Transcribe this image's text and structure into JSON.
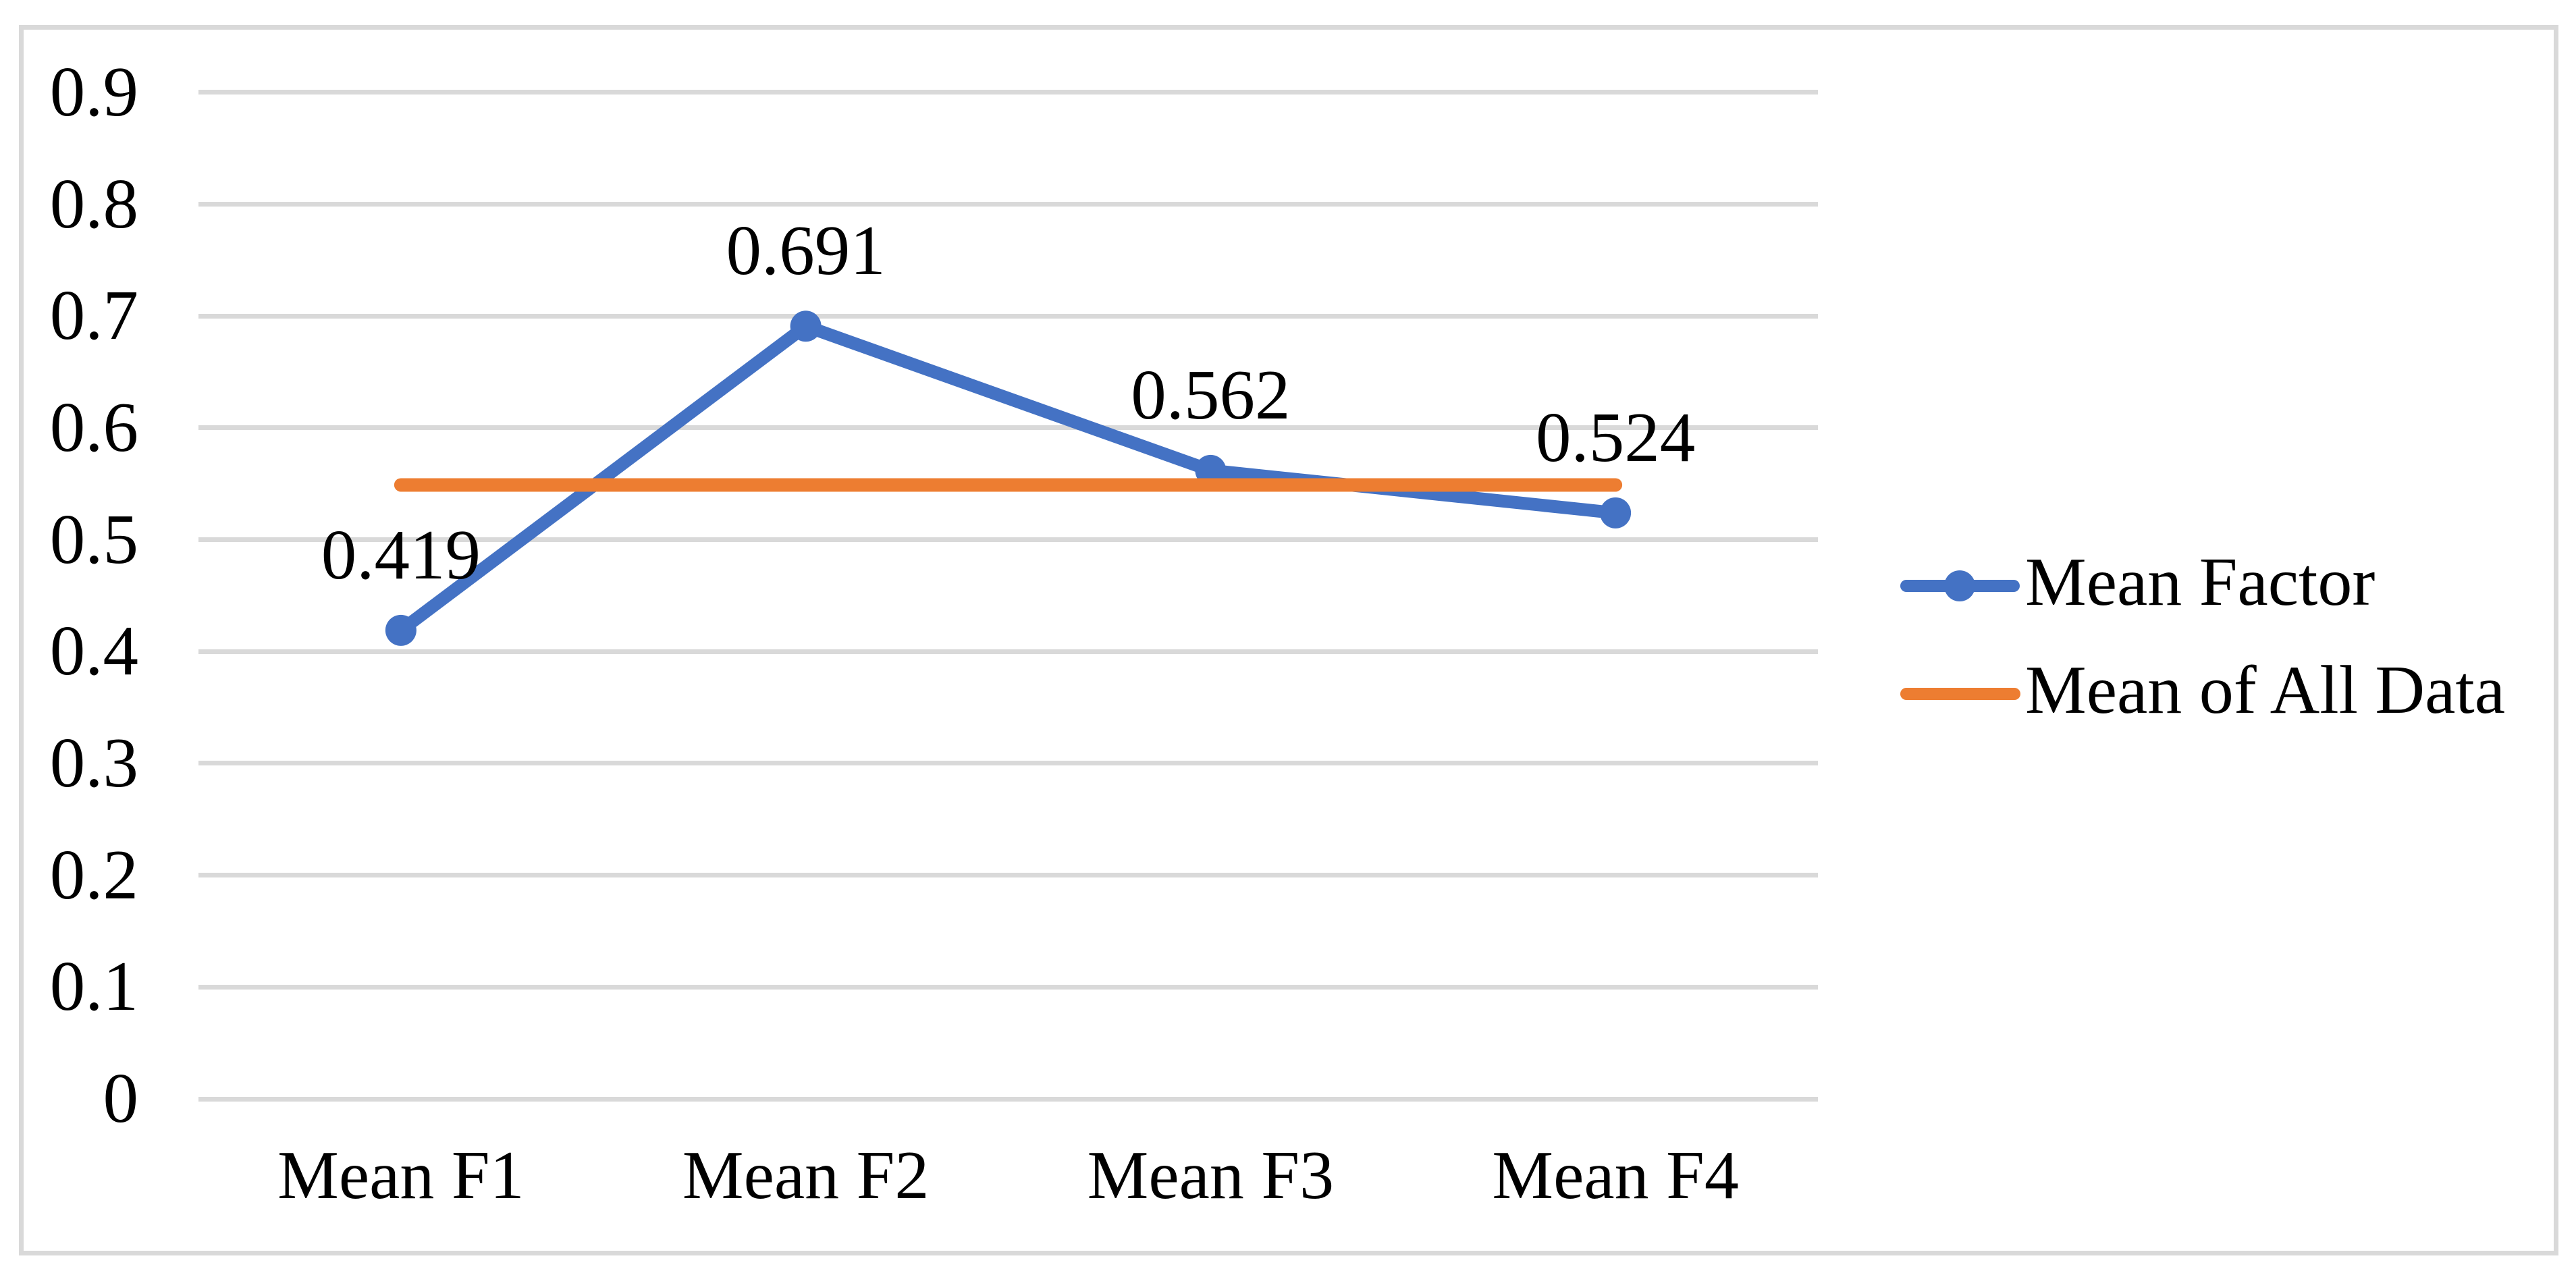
{
  "chart_data": {
    "type": "line",
    "title": "",
    "categories": [
      "Mean F1",
      "Mean F2",
      "Mean F3",
      "Mean F4"
    ],
    "series": [
      {
        "name": "Mean Factor",
        "values": [
          0.419,
          0.691,
          0.562,
          0.524
        ],
        "data_labels": [
          "0.419",
          "0.691",
          "0.562",
          "0.524"
        ],
        "color": "#4472C4",
        "marker": "circle"
      },
      {
        "name": "Mean of All Data",
        "values": [
          0.549,
          0.549,
          0.549,
          0.549
        ],
        "data_labels": [],
        "color": "#ED7D31",
        "marker": "none"
      }
    ],
    "xlabel": "",
    "ylabel": "",
    "ylim": [
      0,
      0.9
    ],
    "y_tick_step": 0.1,
    "y_tick_labels": [
      "0",
      "0.1",
      "0.2",
      "0.3",
      "0.4",
      "0.5",
      "0.6",
      "0.7",
      "0.8",
      "0.9"
    ],
    "grid": "horizontal",
    "gridline_color": "#D9D9D9",
    "frame_border_color": "#D9D9D9",
    "text_color": "#000000",
    "legend_position": "right"
  },
  "legend": {
    "items": [
      {
        "label": "Mean Factor",
        "color": "#4472C4",
        "has_marker": true
      },
      {
        "label": "Mean of All Data",
        "color": "#ED7D31",
        "has_marker": false
      }
    ]
  }
}
